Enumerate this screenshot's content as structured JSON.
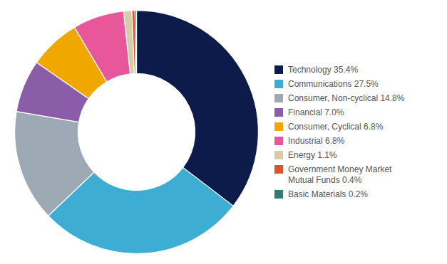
{
  "chart_data": {
    "type": "donut",
    "categories": [
      "Technology 35.4%",
      "Communications 27.5%",
      "Consumer, Non-cyclical 14.8%",
      "Financial 7.0%",
      "Consumer, Cyclical 6.8%",
      "Industrial 6.8%",
      "Energy 1.1%",
      "Government Money Market\nMutual Funds 0.4%",
      "Basic Materials 0.2%"
    ],
    "values": [
      35.4,
      27.5,
      14.8,
      7.0,
      6.8,
      6.8,
      1.1,
      0.4,
      0.2
    ],
    "colors": [
      "#0d1b4b",
      "#3dadd4",
      "#9daab5",
      "#8b5ca8",
      "#f0a800",
      "#e8579a",
      "#d8cba8",
      "#d4572a",
      "#2e7d72"
    ],
    "legend": "right"
  }
}
